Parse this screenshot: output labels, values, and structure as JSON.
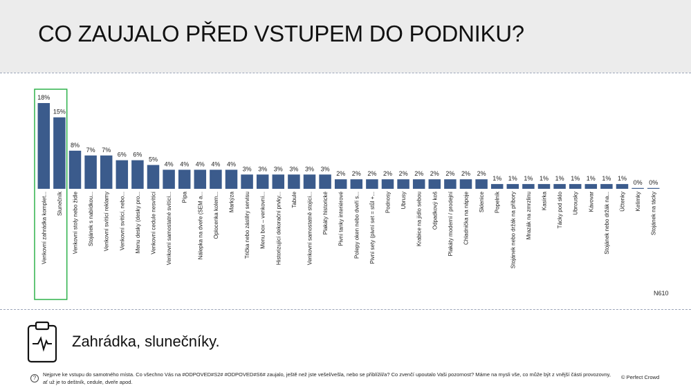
{
  "title": "CO ZAUJALO PŘED VSTUPEM DO PODNIKU?",
  "base_label": "N610",
  "takeaway": "Zahrádka, slunečníky.",
  "question": "Nejprve ke vstupu do samotného místa. Co všechno Vás na #ODPOVED#S2# #ODPOVED#S6# zaujalo, ještě než jste vešel/vešla, nebo se přiblížil/a? Co zvenčí upoutalo Vaši pozornost? Máme na mysli vše, co může být z vnější části provozovny, ať už je to deštník, cedule, dveře apod.",
  "brand": "© Perfect Crowd",
  "icons": {
    "clipboard": "clipboard-pulse-icon",
    "question": "question-circle-icon"
  },
  "colors": {
    "bar": "#3b5b8c",
    "highlight": "#2eb24a",
    "header_bg": "#ececec"
  },
  "chart_data": {
    "type": "bar",
    "highlighted_categories": 2,
    "ylim": [
      0,
      18
    ],
    "categories": [
      "Venkovní zahrádka komplet...",
      "Slunečník",
      "Venkovní stoly nebo židle",
      "Stojánek s nabídkou...",
      "Venkovní svítící reklamy",
      "Venkovní svítící, nebo...",
      "Menu desky (desky pro...",
      "Venkovní cedule nesvítící",
      "Venkovní samostatné svítící...",
      "Pípa",
      "Nálepka na dveře (SEM a...",
      "Oplocenka kolem...",
      "Markýza",
      "Trička nebo zástěry servisu",
      "Menu box – venkovní...",
      "Historizující dekorační prvky...",
      "Tabule",
      "Venkovní samostatně stojící...",
      "Plakáty historické",
      "Pivní tanky interiérové",
      "Polepy oken nebo dveří s...",
      "Pivní sety (pivní set = stůl +...",
      "Podnosy",
      "Ubrusy",
      "Krabice na jídlo sebou",
      "Odpadkový koš",
      "Plakáty moderní / prodejní",
      "Chladnička na nápoje",
      "Sklenice",
      "Popelník",
      "Stojánek nebo držák na příbory",
      "Mrazák na zmrzlinu",
      "Kasírka",
      "Tácky pod sklo",
      "Ubrousky",
      "Kávovar",
      "Stojánek nebo držák na...",
      "Účtenky",
      "Kelímky",
      "Stojánek na tácky"
    ],
    "values": [
      18,
      15,
      8,
      7,
      7,
      6,
      6,
      5,
      4,
      4,
      4,
      4,
      4,
      3,
      3,
      3,
      3,
      3,
      3,
      2,
      2,
      2,
      2,
      2,
      2,
      2,
      2,
      2,
      2,
      1,
      1,
      1,
      1,
      1,
      1,
      1,
      1,
      1,
      0,
      0
    ],
    "labels": [
      "18%",
      "15%",
      "8%",
      "7%",
      "7%",
      "6%",
      "6%",
      "5%",
      "4%",
      "4%",
      "4%",
      "4%",
      "4%",
      "3%",
      "3%",
      "3%",
      "3%",
      "3%",
      "3%",
      "2%",
      "2%",
      "2%",
      "2%",
      "2%",
      "2%",
      "2%",
      "2%",
      "2%",
      "2%",
      "1%",
      "1%",
      "1%",
      "1%",
      "1%",
      "1%",
      "1%",
      "1%",
      "1%",
      "0%",
      "0%"
    ]
  }
}
